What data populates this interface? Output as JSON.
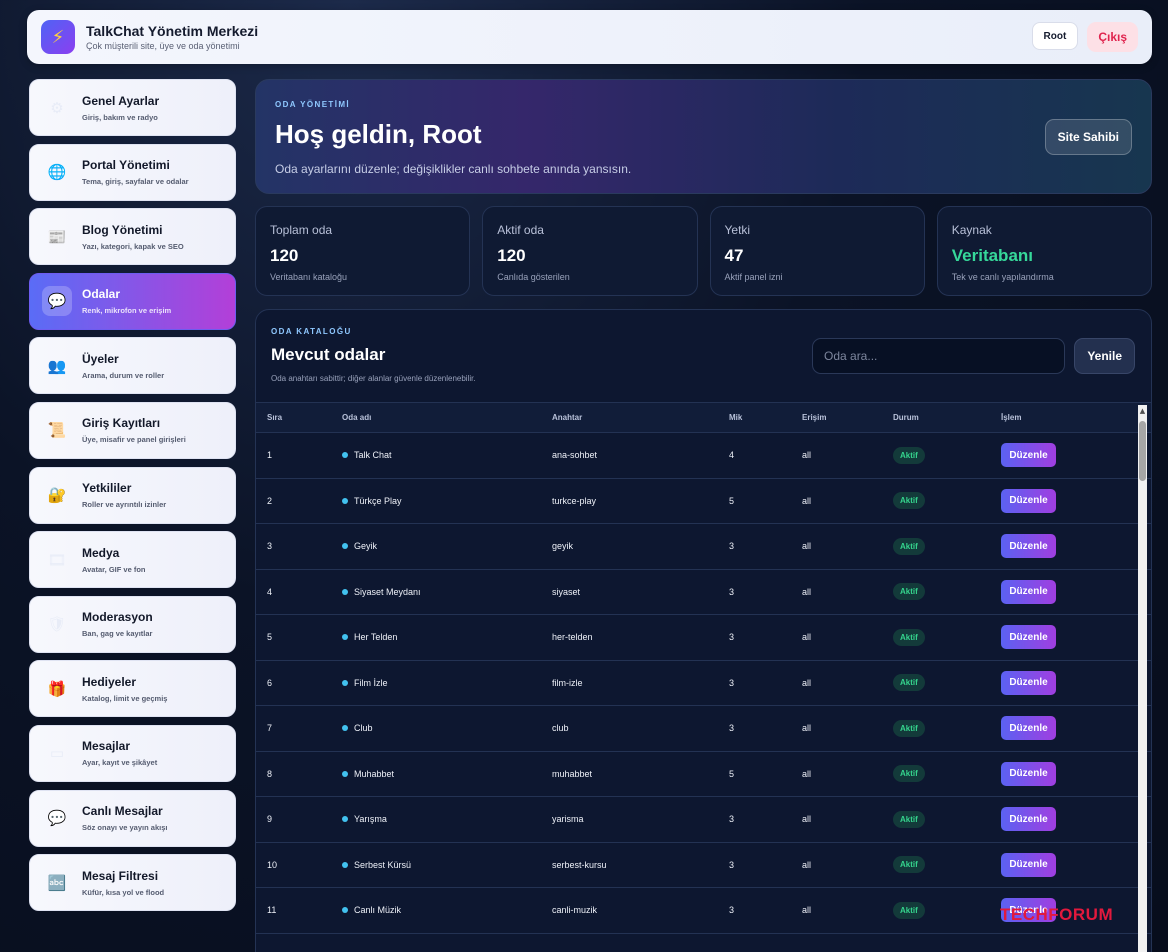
{
  "topbar": {
    "title": "TalkChat Yönetim Merkezi",
    "subtitle": "Çok müşterili site, üye ve oda yönetimi",
    "logo_icon": "lightning-icon",
    "root_label": "Root",
    "logout_label": "Çıkış"
  },
  "sidebar": {
    "items": [
      {
        "title": "Genel Ayarlar",
        "sub": "Giriş, bakım ve radyo",
        "icon": "⚙",
        "icon_name": "gear-icon"
      },
      {
        "title": "Portal Yönetimi",
        "sub": "Tema, giriş, sayfalar ve odalar",
        "icon": "🌐",
        "icon_name": "globe-icon"
      },
      {
        "title": "Blog Yönetimi",
        "sub": "Yazı, kategori, kapak ve SEO",
        "icon": "📰",
        "icon_name": "newspaper-icon"
      },
      {
        "title": "Odalar",
        "sub": "Renk, mikrofon ve erişim",
        "icon": "💬",
        "icon_name": "chat-bubble-icon",
        "active": true
      },
      {
        "title": "Üyeler",
        "sub": "Arama, durum ve roller",
        "icon": "👥",
        "icon_name": "users-icon"
      },
      {
        "title": "Giriş Kayıtları",
        "sub": "Üye, misafir ve panel girişleri",
        "icon": "📜",
        "icon_name": "scroll-icon"
      },
      {
        "title": "Yetkililer",
        "sub": "Roller ve ayrıntılı izinler",
        "icon": "🔐",
        "icon_name": "lock-key-icon"
      },
      {
        "title": "Medya",
        "sub": "Avatar, GIF ve fon",
        "icon": "🎞",
        "icon_name": "film-icon"
      },
      {
        "title": "Moderasyon",
        "sub": "Ban, gag ve kayıtlar",
        "icon": "🛡",
        "icon_name": "shield-icon"
      },
      {
        "title": "Hediyeler",
        "sub": "Katalog, limit ve geçmiş",
        "icon": "🎁",
        "icon_name": "gift-icon"
      },
      {
        "title": "Mesajlar",
        "sub": "Ayar, kayıt ve şikâyet",
        "icon": "▭",
        "icon_name": "message-box-icon"
      },
      {
        "title": "Canlı Mesajlar",
        "sub": "Söz onayı ve yayın akışı",
        "icon": "💬",
        "icon_name": "speech-icon"
      },
      {
        "title": "Mesaj Filtresi",
        "sub": "Küfür, kısa yol ve flood",
        "icon": "🔤",
        "icon_name": "abc-filter-icon"
      }
    ]
  },
  "hero": {
    "eyebrow": "ODA YÖNETİMİ",
    "title": "Hoş geldin, Root",
    "subtitle": "Oda ayarlarını düzenle; değişiklikler canlı sohbete anında yansısın.",
    "owner_button": "Site Sahibi"
  },
  "stats": [
    {
      "label": "Toplam oda",
      "value": "120",
      "sub": "Veritabanı kataloğu"
    },
    {
      "label": "Aktif oda",
      "value": "120",
      "sub": "Canlıda gösterilen"
    },
    {
      "label": "Yetki",
      "value": "47",
      "sub": "Aktif panel izni"
    },
    {
      "label": "Kaynak",
      "value": "Veritabanı",
      "sub": "Tek ve canlı yapılandırma",
      "accent": true
    }
  ],
  "catalog": {
    "eyebrow": "ODA KATALOĞU",
    "title": "Mevcut odalar",
    "subtitle": "Oda anahtarı sabittir; diğer alanlar güvenle düzenlenebilir.",
    "search_placeholder": "Oda ara...",
    "refresh_label": "Yenile",
    "columns": [
      "Sıra",
      "Oda adı",
      "Anahtar",
      "Mik",
      "Erişim",
      "Durum",
      "İşlem"
    ],
    "rows": [
      {
        "no": "1",
        "name": "Talk Chat",
        "key": "ana-sohbet",
        "mic": "4",
        "access": "all",
        "status": "Aktif",
        "action": "Düzenle"
      },
      {
        "no": "2",
        "name": "Türkçe Play",
        "key": "turkce-play",
        "mic": "5",
        "access": "all",
        "status": "Aktif",
        "action": "Düzenle"
      },
      {
        "no": "3",
        "name": "Geyik",
        "key": "geyik",
        "mic": "3",
        "access": "all",
        "status": "Aktif",
        "action": "Düzenle"
      },
      {
        "no": "4",
        "name": "Siyaset Meydanı",
        "key": "siyaset",
        "mic": "3",
        "access": "all",
        "status": "Aktif",
        "action": "Düzenle"
      },
      {
        "no": "5",
        "name": "Her Telden",
        "key": "her-telden",
        "mic": "3",
        "access": "all",
        "status": "Aktif",
        "action": "Düzenle"
      },
      {
        "no": "6",
        "name": "Film İzle",
        "key": "film-izle",
        "mic": "3",
        "access": "all",
        "status": "Aktif",
        "action": "Düzenle"
      },
      {
        "no": "7",
        "name": "Club",
        "key": "club",
        "mic": "3",
        "access": "all",
        "status": "Aktif",
        "action": "Düzenle"
      },
      {
        "no": "8",
        "name": "Muhabbet",
        "key": "muhabbet",
        "mic": "5",
        "access": "all",
        "status": "Aktif",
        "action": "Düzenle"
      },
      {
        "no": "9",
        "name": "Yarışma",
        "key": "yarisma",
        "mic": "3",
        "access": "all",
        "status": "Aktif",
        "action": "Düzenle"
      },
      {
        "no": "10",
        "name": "Serbest Kürsü",
        "key": "serbest-kursu",
        "mic": "3",
        "access": "all",
        "status": "Aktif",
        "action": "Düzenle"
      },
      {
        "no": "11",
        "name": "Canlı Müzik",
        "key": "canli-muzik",
        "mic": "3",
        "access": "all",
        "status": "Aktif",
        "action": "Düzenle"
      }
    ]
  },
  "watermark": "TECHFORUM",
  "colors": {
    "accent_gradient_start": "#5a6cf6",
    "accent_gradient_end": "#b33fd8",
    "status_green": "#35d48d",
    "source_green": "#36d89a",
    "logout_red": "#e0244e",
    "dot_cyan": "#42c2ef"
  }
}
